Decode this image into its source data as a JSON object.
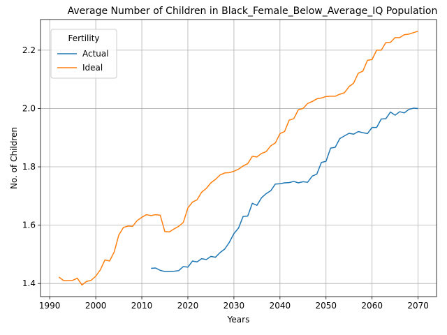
{
  "chart_data": {
    "type": "line",
    "title": "Average Number of Children in Black_Female_Below_Average_IQ Population",
    "xlabel": "Years",
    "ylabel": "No. of Children",
    "xlim": [
      1988,
      2074
    ],
    "ylim": [
      1.355,
      2.305
    ],
    "xticks": [
      1990,
      2000,
      2010,
      2020,
      2030,
      2040,
      2050,
      2060,
      2070
    ],
    "yticks": [
      1.4,
      1.6,
      1.8,
      2.0,
      2.2
    ],
    "ytick_labels": [
      "1.4",
      "1.6",
      "1.8",
      "2.0",
      "2.2"
    ],
    "grid": true,
    "legend": {
      "title": "Fertility",
      "position": "top-left"
    },
    "series": [
      {
        "name": "Actual",
        "color": "#1f77b4",
        "x": [
          2012,
          2013,
          2014,
          2015,
          2016,
          2017,
          2018,
          2019,
          2020,
          2021,
          2022,
          2023,
          2024,
          2025,
          2026,
          2027,
          2028,
          2029,
          2030,
          2031,
          2032,
          2033,
          2034,
          2035,
          2036,
          2037,
          2038,
          2039,
          2040,
          2041,
          2042,
          2043,
          2044,
          2045,
          2046,
          2047,
          2048,
          2049,
          2050,
          2051,
          2052,
          2053,
          2054,
          2055,
          2056,
          2057,
          2058,
          2059,
          2060,
          2061,
          2062,
          2063,
          2064,
          2065,
          2066,
          2067,
          2068,
          2069,
          2070
        ],
        "y": [
          1.452,
          1.453,
          1.445,
          1.441,
          1.441,
          1.442,
          1.444,
          1.458,
          1.456,
          1.477,
          1.474,
          1.485,
          1.482,
          1.493,
          1.49,
          1.506,
          1.518,
          1.541,
          1.571,
          1.59,
          1.63,
          1.631,
          1.675,
          1.668,
          1.694,
          1.708,
          1.718,
          1.741,
          1.742,
          1.745,
          1.746,
          1.75,
          1.745,
          1.749,
          1.747,
          1.768,
          1.775,
          1.815,
          1.819,
          1.864,
          1.867,
          1.897,
          1.906,
          1.915,
          1.912,
          1.921,
          1.917,
          1.914,
          1.935,
          1.935,
          1.964,
          1.965,
          1.988,
          1.977,
          1.989,
          1.985,
          1.997,
          2.001,
          2.0
        ]
      },
      {
        "name": "Ideal",
        "color": "#ff7f0e",
        "x": [
          1992,
          1993,
          1994,
          1995,
          1996,
          1997,
          1998,
          1999,
          2000,
          2001,
          2002,
          2003,
          2004,
          2005,
          2006,
          2007,
          2008,
          2009,
          2010,
          2011,
          2012,
          2013,
          2014,
          2015,
          2016,
          2017,
          2018,
          2019,
          2020,
          2021,
          2022,
          2023,
          2024,
          2025,
          2026,
          2027,
          2028,
          2029,
          2030,
          2031,
          2032,
          2033,
          2034,
          2035,
          2036,
          2037,
          2038,
          2039,
          2040,
          2041,
          2042,
          2043,
          2044,
          2045,
          2046,
          2047,
          2048,
          2049,
          2050,
          2051,
          2052,
          2053,
          2054,
          2055,
          2056,
          2057,
          2058,
          2059,
          2060,
          2061,
          2062,
          2063,
          2064,
          2065,
          2066,
          2067,
          2068,
          2069,
          2070
        ],
        "y": [
          1.422,
          1.41,
          1.41,
          1.411,
          1.418,
          1.395,
          1.407,
          1.411,
          1.425,
          1.447,
          1.481,
          1.477,
          1.508,
          1.566,
          1.592,
          1.597,
          1.596,
          1.616,
          1.627,
          1.636,
          1.633,
          1.636,
          1.634,
          1.578,
          1.577,
          1.587,
          1.596,
          1.609,
          1.659,
          1.679,
          1.687,
          1.713,
          1.726,
          1.745,
          1.757,
          1.772,
          1.779,
          1.78,
          1.785,
          1.792,
          1.803,
          1.811,
          1.836,
          1.834,
          1.846,
          1.852,
          1.872,
          1.882,
          1.914,
          1.921,
          1.96,
          1.965,
          1.996,
          2.0,
          2.017,
          2.024,
          2.033,
          2.036,
          2.041,
          2.042,
          2.042,
          2.049,
          2.054,
          2.075,
          2.087,
          2.121,
          2.128,
          2.165,
          2.168,
          2.2,
          2.2,
          2.226,
          2.227,
          2.243,
          2.243,
          2.253,
          2.255,
          2.26,
          2.265
        ]
      }
    ]
  }
}
